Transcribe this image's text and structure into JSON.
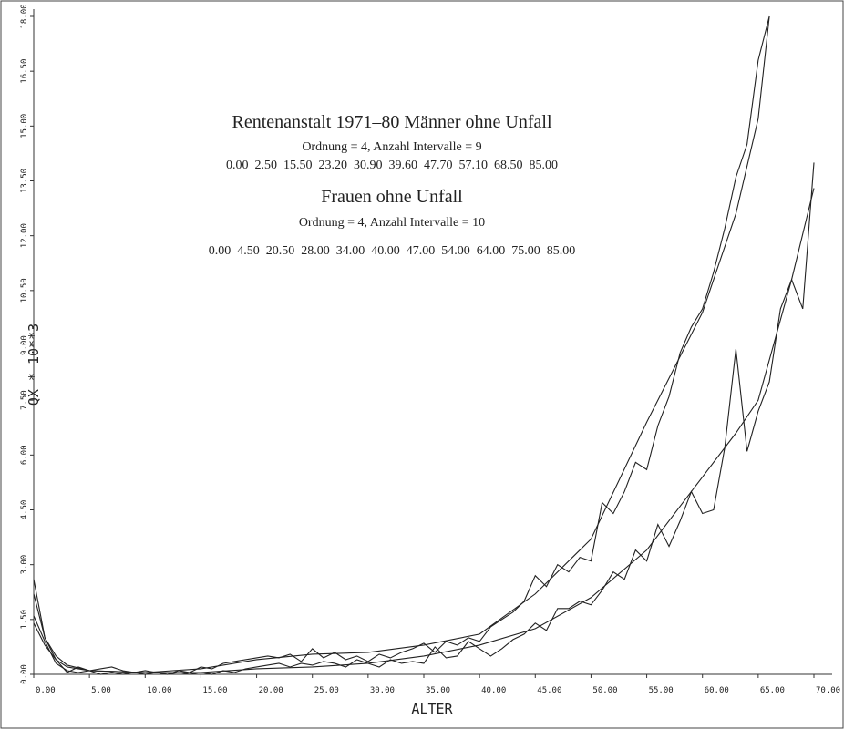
{
  "chart_data": {
    "type": "line",
    "annotations": [
      "Rentenanstalt 1971–80 Männer ohne Unfall",
      "Ordnung = 4, Anzahl Intervalle = 9",
      "0.00  2.50  15.50  23.20  30.90  39.60  47.70  57.10  68.50  85.00",
      "Frauen ohne Unfall",
      "Ordnung = 4, Anzahl Intervalle = 10",
      "0.00  4.50  20.50  28.00  34.00  40.00  47.00  54.00  64.00  75.00  85.00"
    ],
    "x_label": "ALTER",
    "y_label": "QX * 10**3",
    "xlim": [
      0,
      70
    ],
    "ylim": [
      0,
      18
    ],
    "xticks": [
      {
        "value": 0,
        "label": "0.00"
      },
      {
        "value": 5,
        "label": "5.00"
      },
      {
        "value": 10,
        "label": "10.00"
      },
      {
        "value": 15,
        "label": "15.00"
      },
      {
        "value": 20,
        "label": "20.00"
      },
      {
        "value": 25,
        "label": "25.00"
      },
      {
        "value": 30,
        "label": "30.00"
      },
      {
        "value": 35,
        "label": "35.00"
      },
      {
        "value": 40,
        "label": "40.00"
      },
      {
        "value": 45,
        "label": "45.00"
      },
      {
        "value": 50,
        "label": "50.00"
      },
      {
        "value": 55,
        "label": "55.00"
      },
      {
        "value": 60,
        "label": "60.00"
      },
      {
        "value": 65,
        "label": "65.00"
      },
      {
        "value": 70,
        "label": "70.00"
      }
    ],
    "yticks": [
      {
        "value": 0,
        "label": "0.00"
      },
      {
        "value": 1.5,
        "label": "1.50"
      },
      {
        "value": 3,
        "label": "3.00"
      },
      {
        "value": 4.5,
        "label": "4.50"
      },
      {
        "value": 6,
        "label": "6.00"
      },
      {
        "value": 7.5,
        "label": "7.50"
      },
      {
        "value": 9,
        "label": "9.00"
      },
      {
        "value": 10.5,
        "label": "10.50"
      },
      {
        "value": 12,
        "label": "12.00"
      },
      {
        "value": 13.5,
        "label": "13.50"
      },
      {
        "value": 15,
        "label": "15.00"
      },
      {
        "value": 16.5,
        "label": "16.50"
      },
      {
        "value": 18,
        "label": "18.00"
      }
    ],
    "series": [
      {
        "color": "#222222",
        "x": [
          0,
          1,
          2,
          3,
          4,
          5,
          6,
          7,
          8,
          9,
          10,
          11,
          12,
          13,
          14,
          15,
          16,
          17,
          18,
          19,
          20,
          21,
          22,
          23,
          24,
          25,
          26,
          27,
          28,
          29,
          30,
          31,
          32,
          33,
          34,
          35,
          36,
          37,
          38,
          39,
          40,
          41,
          42,
          43,
          44,
          45,
          46,
          47,
          48,
          49,
          50,
          51,
          52,
          53,
          54,
          55,
          56,
          57,
          58,
          59,
          60,
          61,
          62,
          63,
          64,
          65,
          66
        ],
        "values": [
          2.6,
          1.0,
          0.4,
          0.05,
          0.2,
          0.1,
          0.15,
          0.2,
          0.1,
          0.05,
          0.1,
          0.05,
          0.0,
          0.1,
          0.05,
          0.2,
          0.15,
          0.3,
          0.35,
          0.4,
          0.45,
          0.5,
          0.45,
          0.55,
          0.35,
          0.7,
          0.45,
          0.6,
          0.4,
          0.5,
          0.35,
          0.55,
          0.45,
          0.6,
          0.7,
          0.85,
          0.6,
          0.9,
          0.8,
          1.0,
          0.9,
          1.3,
          1.5,
          1.7,
          2.0,
          2.7,
          2.4,
          3.0,
          2.8,
          3.2,
          3.1,
          4.7,
          4.4,
          5.0,
          5.8,
          5.6,
          6.8,
          7.6,
          8.8,
          9.5,
          10.0,
          11.0,
          12.2,
          13.6,
          14.5,
          16.8,
          18.0
        ]
      },
      {
        "color": "#222222",
        "x": [
          0,
          1,
          2,
          3,
          5,
          10,
          15,
          20,
          25,
          30,
          35,
          40,
          45,
          50,
          55,
          60,
          63,
          65,
          66
        ],
        "values": [
          2.2,
          1.0,
          0.5,
          0.25,
          0.1,
          0.05,
          0.15,
          0.4,
          0.55,
          0.6,
          0.8,
          1.1,
          2.2,
          3.7,
          6.9,
          9.9,
          12.6,
          15.2,
          18.0
        ]
      },
      {
        "color": "#222222",
        "x": [
          0,
          1,
          2,
          3,
          4,
          5,
          6,
          7,
          8,
          9,
          10,
          11,
          12,
          13,
          14,
          15,
          16,
          17,
          18,
          19,
          20,
          21,
          22,
          23,
          24,
          25,
          26,
          27,
          28,
          29,
          30,
          31,
          32,
          33,
          34,
          35,
          36,
          37,
          38,
          39,
          40,
          41,
          42,
          43,
          44,
          45,
          46,
          47,
          48,
          49,
          50,
          51,
          52,
          53,
          54,
          55,
          56,
          57,
          58,
          59,
          60,
          61,
          62,
          63,
          64,
          65,
          66,
          67,
          68,
          69,
          70
        ],
        "values": [
          1.6,
          0.9,
          0.3,
          0.1,
          0.05,
          0.1,
          0.0,
          0.05,
          0.0,
          0.05,
          0.0,
          0.05,
          0.0,
          0.05,
          0.0,
          0.05,
          0.0,
          0.1,
          0.05,
          0.15,
          0.2,
          0.25,
          0.3,
          0.2,
          0.3,
          0.25,
          0.35,
          0.3,
          0.2,
          0.4,
          0.3,
          0.2,
          0.4,
          0.3,
          0.35,
          0.3,
          0.75,
          0.45,
          0.5,
          0.9,
          0.7,
          0.5,
          0.7,
          0.95,
          1.1,
          1.4,
          1.2,
          1.8,
          1.8,
          2.0,
          1.9,
          2.3,
          2.8,
          2.6,
          3.4,
          3.1,
          4.1,
          3.5,
          4.2,
          5.0,
          4.4,
          4.5,
          6.2,
          8.9,
          6.1,
          7.2,
          8.0,
          10.0,
          10.8,
          10.0,
          14.0
        ]
      },
      {
        "color": "#222222",
        "x": [
          0,
          1,
          2,
          3,
          5,
          10,
          15,
          20,
          25,
          30,
          35,
          40,
          45,
          50,
          55,
          60,
          63,
          65,
          68,
          70
        ],
        "values": [
          1.4,
          0.8,
          0.4,
          0.2,
          0.1,
          0.05,
          0.05,
          0.15,
          0.2,
          0.3,
          0.5,
          0.8,
          1.25,
          2.1,
          3.4,
          5.4,
          6.6,
          7.5,
          10.8,
          13.3
        ]
      }
    ]
  }
}
